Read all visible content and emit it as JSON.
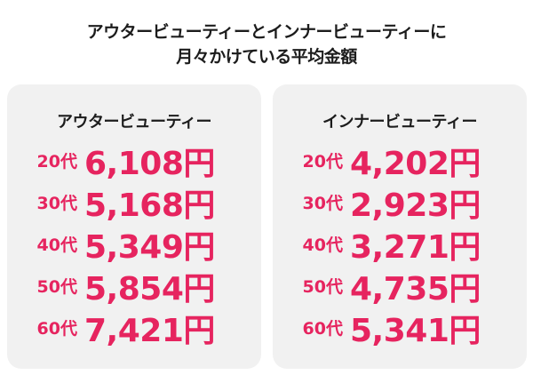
{
  "title": {
    "line1": "アウタービューティーとインナービューティーに",
    "line2": "月々かけている平均金額"
  },
  "colors": {
    "accent": "#e6245f",
    "card_bg": "#f1f1f1",
    "text": "#1c1c1c"
  },
  "outer": {
    "heading": "アウタービューティー",
    "rows": [
      {
        "age": "20代",
        "amount": "6,108円"
      },
      {
        "age": "30代",
        "amount": "5,168円"
      },
      {
        "age": "40代",
        "amount": "5,349円"
      },
      {
        "age": "50代",
        "amount": "5,854円"
      },
      {
        "age": "60代",
        "amount": "7,421円"
      }
    ]
  },
  "inner": {
    "heading": "インナービューティー",
    "rows": [
      {
        "age": "20代",
        "amount": "4,202円"
      },
      {
        "age": "30代",
        "amount": "2,923円"
      },
      {
        "age": "40代",
        "amount": "3,271円"
      },
      {
        "age": "50代",
        "amount": "4,735円"
      },
      {
        "age": "60代",
        "amount": "5,341円"
      }
    ]
  },
  "chart_data": {
    "type": "table",
    "title": "アウタービューティーとインナービューティーに月々かけている平均金額",
    "categories": [
      "20代",
      "30代",
      "40代",
      "50代",
      "60代"
    ],
    "series": [
      {
        "name": "アウタービューティー",
        "values": [
          6108,
          5168,
          5349,
          5854,
          7421
        ]
      },
      {
        "name": "インナービューティー",
        "values": [
          4202,
          2923,
          3271,
          4735,
          5341
        ]
      }
    ],
    "unit": "円"
  }
}
